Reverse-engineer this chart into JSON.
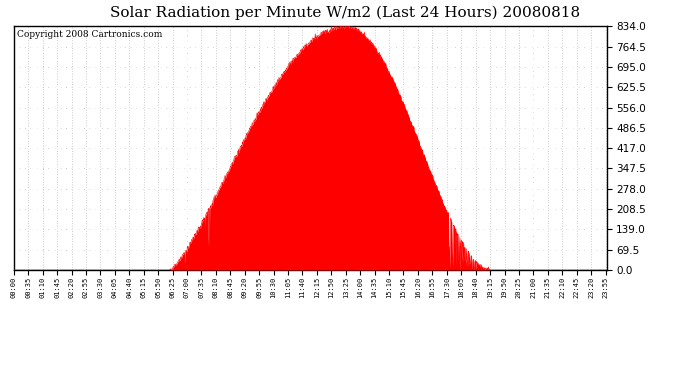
{
  "title": "Solar Radiation per Minute W/m2 (Last 24 Hours) 20080818",
  "copyright": "Copyright 2008 Cartronics.com",
  "fill_color": "#FF0000",
  "line_color": "#FF0000",
  "bg_color": "#FFFFFF",
  "dashed_line_color": "#FF0000",
  "grid_h_color": "#CCCCCC",
  "grid_v_color": "#CCCCCC",
  "white_dash_color": "#FFFFFF",
  "yticks": [
    0.0,
    69.5,
    139.0,
    208.5,
    278.0,
    347.5,
    417.0,
    486.5,
    556.0,
    625.5,
    695.0,
    764.5,
    834.0
  ],
  "ymax": 834.0,
  "ymin": 0.0,
  "sunrise_minute": 378,
  "sunset_minute": 1155,
  "peak_minute": 805,
  "title_fontsize": 11,
  "copyright_fontsize": 6.5,
  "tick_interval_minutes": 35
}
